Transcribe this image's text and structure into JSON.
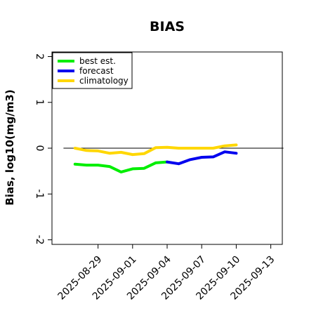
{
  "chart_data": {
    "type": "line",
    "title": "BIAS",
    "xlabel": "",
    "ylabel": "Bias, log10(mg/m3)",
    "ylim": [
      -2.1,
      2.1
    ],
    "xlim": [
      "2025-08-25",
      "2025-09-14"
    ],
    "yticks": [
      -2,
      -1,
      0,
      1,
      2
    ],
    "ytick_labels": [
      "-2",
      "-1",
      "0",
      "1",
      "2"
    ],
    "xticks": [
      "2025-08-29",
      "2025-09-01",
      "2025-09-04",
      "2025-09-07",
      "2025-09-10",
      "2025-09-13"
    ],
    "xtick_labels": [
      "2025-08-29",
      "2025-09-01",
      "2025-09-04",
      "2025-09-07",
      "2025-09-10",
      "2025-09-13"
    ],
    "highlighted_xtick": "2025-09-04",
    "highlight_color": "#228b22",
    "reference_line": 0,
    "grid": false,
    "legend_position": "top-left",
    "series": [
      {
        "name": "best est.",
        "color": "#00ee00",
        "x": [
          "2025-08-27",
          "2025-08-28",
          "2025-08-29",
          "2025-08-30",
          "2025-08-31",
          "2025-09-01",
          "2025-09-02",
          "2025-09-03",
          "2025-09-04"
        ],
        "values": [
          -0.35,
          -0.37,
          -0.37,
          -0.4,
          -0.52,
          -0.45,
          -0.44,
          -0.32,
          -0.3
        ]
      },
      {
        "name": "forecast",
        "color": "#0000ee",
        "x": [
          "2025-09-04",
          "2025-09-05",
          "2025-09-06",
          "2025-09-07",
          "2025-09-08",
          "2025-09-09",
          "2025-09-10"
        ],
        "values": [
          -0.3,
          -0.34,
          -0.25,
          -0.2,
          -0.19,
          -0.08,
          -0.11
        ]
      },
      {
        "name": "climatology",
        "color": "#ffd700",
        "x": [
          "2025-08-27",
          "2025-08-28",
          "2025-08-29",
          "2025-08-30",
          "2025-08-31",
          "2025-09-01",
          "2025-09-02",
          "2025-09-03",
          "2025-09-04",
          "2025-09-05",
          "2025-09-06",
          "2025-09-07",
          "2025-09-08",
          "2025-09-09",
          "2025-09-10"
        ],
        "values": [
          0.0,
          -0.05,
          -0.06,
          -0.11,
          -0.09,
          -0.14,
          -0.12,
          0.01,
          0.02,
          0.0,
          0.0,
          0.0,
          0.0,
          0.05,
          0.07
        ]
      }
    ]
  }
}
